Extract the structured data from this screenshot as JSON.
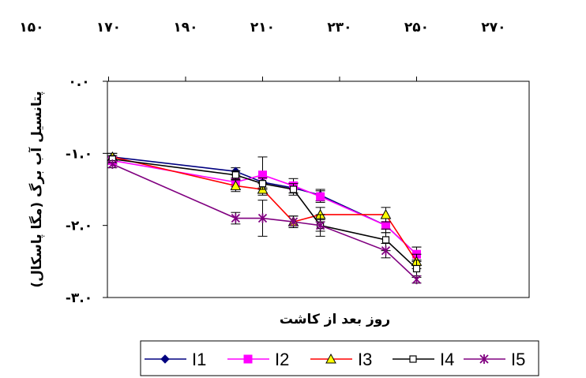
{
  "chart_data": {
    "type": "line",
    "xlabel": "روز بعد از کاشت",
    "ylabel": "پتانسیل آب برگ (مگا پاسکال)",
    "x_ticks": [
      "۱۵۰",
      "۱۷۰",
      "۱۹۰",
      "۲۱۰",
      "۲۳۰",
      "۲۵۰",
      "۲۷۰"
    ],
    "y_ticks": [
      "۰.۰",
      "-۱.۰",
      "-۲.۰",
      "-۳.۰"
    ],
    "xlim": [
      150,
      270
    ],
    "ylim": [
      -3.0,
      0.0
    ],
    "grid": false,
    "legend_position": "bottom",
    "series": [
      {
        "name": "I1",
        "color": "#000080",
        "marker": "diamond",
        "x": [
          171,
          203,
          210,
          218,
          225,
          242,
          250
        ],
        "y": [
          -1.05,
          -1.25,
          -1.4,
          -1.48,
          -1.58,
          -2.0,
          -2.4
        ],
        "err": [
          0.05,
          0.05,
          0.08,
          0.07,
          0.08,
          0.1,
          0.1
        ]
      },
      {
        "name": "I2",
        "color": "#ff00ff",
        "marker": "square",
        "x": [
          171,
          203,
          210,
          218,
          225,
          242,
          250
        ],
        "y": [
          -1.1,
          -1.4,
          -1.3,
          -1.45,
          -1.6,
          -2.0,
          -2.4
        ],
        "err": [
          0.05,
          0.06,
          0.25,
          0.1,
          0.08,
          0.1,
          0.1
        ]
      },
      {
        "name": "I3",
        "color": "#ff0000",
        "marker": "triangle",
        "x": [
          171,
          203,
          210,
          218,
          225,
          242,
          250
        ],
        "y": [
          -1.05,
          -1.45,
          -1.5,
          -1.95,
          -1.85,
          -1.85,
          -2.5
        ],
        "err": [
          0.05,
          0.08,
          0.08,
          0.08,
          0.1,
          0.1,
          0.1
        ]
      },
      {
        "name": "I4",
        "color": "#000000",
        "marker": "open-square",
        "x": [
          171,
          203,
          210,
          218,
          225,
          242,
          250
        ],
        "y": [
          -1.08,
          -1.3,
          -1.42,
          -1.5,
          -2.0,
          -2.2,
          -2.6
        ],
        "err": [
          0.05,
          0.06,
          0.08,
          0.08,
          0.08,
          0.15,
          0.12
        ]
      },
      {
        "name": "I5",
        "color": "#800080",
        "marker": "star",
        "x": [
          171,
          203,
          210,
          218,
          225,
          242,
          250
        ],
        "y": [
          -1.15,
          -1.9,
          -1.9,
          -1.95,
          -2.0,
          -2.35,
          -2.75
        ],
        "err": [
          0.05,
          0.08,
          0.25,
          0.08,
          0.15,
          0.1,
          0.05
        ]
      }
    ]
  }
}
